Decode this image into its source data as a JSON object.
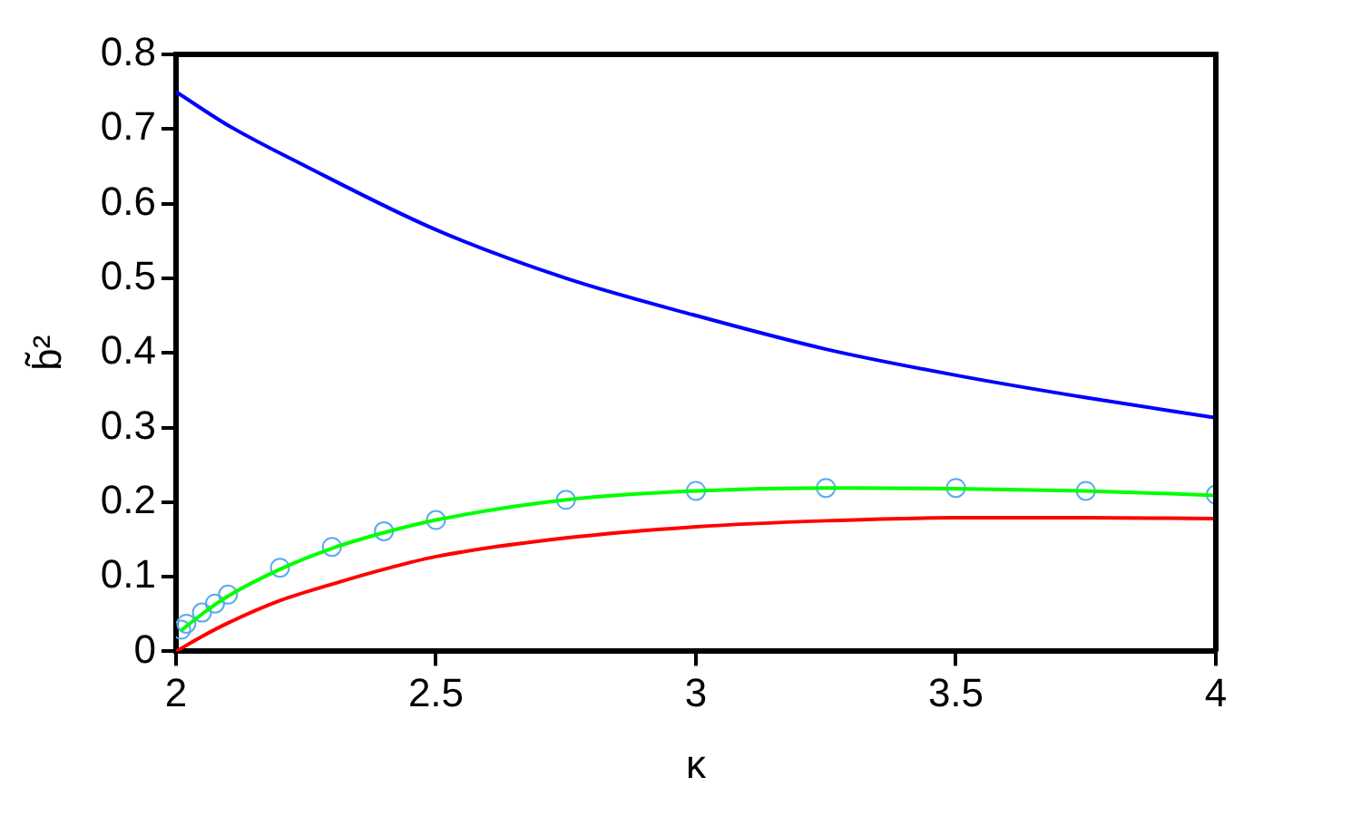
{
  "chart_data": {
    "type": "line",
    "xlabel": "κ",
    "ylabel": "b̃²",
    "xlim": [
      2,
      4
    ],
    "xticks": [
      2,
      2.5,
      3,
      3.5,
      4
    ],
    "ylim": [
      0,
      0.8
    ],
    "yticks": [
      0,
      0.1,
      0.2,
      0.3,
      0.4,
      0.5,
      0.6,
      0.7,
      0.8
    ],
    "grid": false,
    "legend": false,
    "marker": "none",
    "series": [
      {
        "color": "#0000ff",
        "x": [
          2,
          2.1,
          2.25,
          2.5,
          2.75,
          3,
          3.25,
          3.5,
          3.75,
          4
        ],
        "values": [
          0.75,
          0.705,
          0.65,
          0.565,
          0.5,
          0.45,
          0.405,
          0.37,
          0.34,
          0.313
        ]
      },
      {
        "color": "#ff0000",
        "x": [
          2,
          2.05,
          2.1,
          2.2,
          2.3,
          2.4,
          2.5,
          2.75,
          3,
          3.25,
          3.5,
          3.75,
          4
        ],
        "values": [
          0,
          0.02,
          0.038,
          0.068,
          0.09,
          0.11,
          0.127,
          0.152,
          0.167,
          0.175,
          0.179,
          0.179,
          0.178
        ]
      },
      {
        "color": "#00ff00",
        "x": [
          2.01,
          2.05,
          2.1,
          2.2,
          2.3,
          2.4,
          2.5,
          2.75,
          3,
          3.25,
          3.5,
          3.75,
          4
        ],
        "values": [
          0.028,
          0.05,
          0.074,
          0.11,
          0.138,
          0.159,
          0.176,
          0.203,
          0.215,
          0.219,
          0.218,
          0.215,
          0.209
        ]
      },
      {
        "type": "scatter",
        "marker": "circle",
        "color": "#5aaaf0",
        "x": [
          2.01,
          2.02,
          2.05,
          2.075,
          2.1,
          2.2,
          2.3,
          2.4,
          2.5,
          2.75,
          3,
          3.25,
          3.5,
          3.75,
          4
        ],
        "values": [
          0.029,
          0.037,
          0.052,
          0.064,
          0.076,
          0.112,
          0.14,
          0.161,
          0.176,
          0.203,
          0.215,
          0.219,
          0.219,
          0.215,
          0.21
        ]
      }
    ]
  }
}
